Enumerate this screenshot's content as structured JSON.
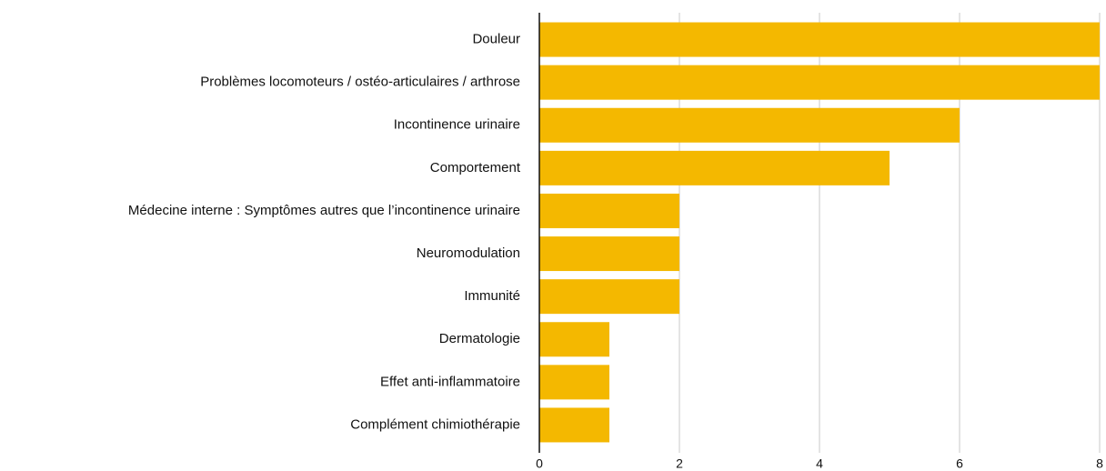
{
  "chart_data": {
    "type": "bar",
    "orientation": "horizontal",
    "categories": [
      "Douleur",
      "Problèmes locomoteurs / ostéo-articulaires / arthrose",
      "Incontinence urinaire",
      "Comportement",
      "Médecine interne : Symptômes autres que l’incontinence urinaire",
      "Neuromodulation",
      "Immunité",
      "Dermatologie",
      "Effet anti-inflammatoire",
      "Complément chimiothérapie"
    ],
    "values": [
      8,
      8,
      6,
      5,
      2,
      2,
      2,
      1,
      1,
      1
    ],
    "color": "#f4b800",
    "xlim": [
      0,
      8
    ],
    "xticks": [
      0,
      2,
      4,
      6,
      8
    ],
    "grid": true
  }
}
